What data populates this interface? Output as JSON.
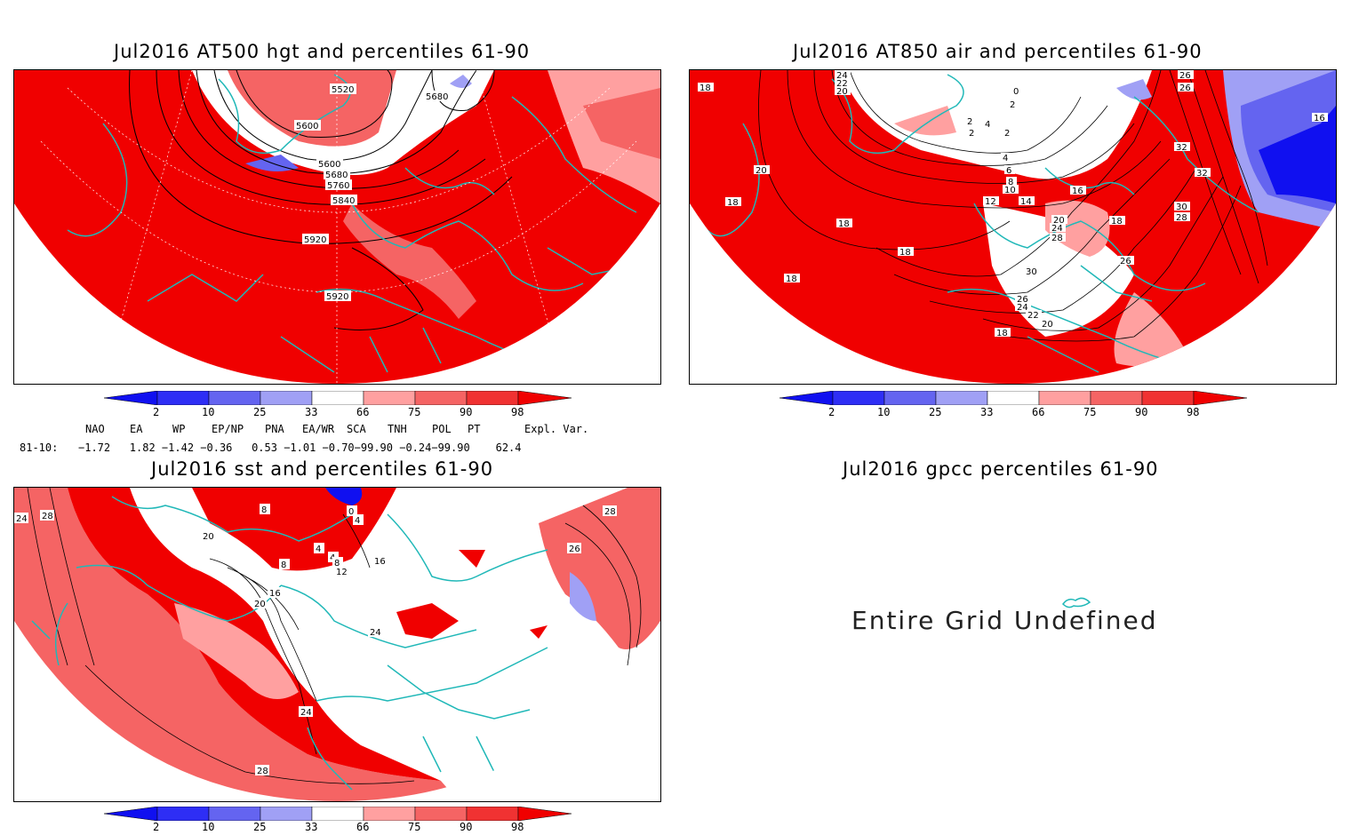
{
  "panels": {
    "hgt": {
      "title": "Jul2016 AT500 hgt and percentiles 61-90",
      "contour_labels": [
        "5520",
        "5680",
        "5600",
        "5600",
        "5680",
        "5760",
        "5840",
        "5920",
        "5920"
      ]
    },
    "air": {
      "title": "Jul2016 AT850 air and percentiles 61-90",
      "contour_labels": [
        "24",
        "22",
        "20",
        "18",
        "0",
        "2",
        "2",
        "4",
        "2",
        "2",
        "4",
        "6",
        "8",
        "10",
        "12",
        "14",
        "16",
        "20",
        "18",
        "24",
        "28",
        "18",
        "30",
        "26",
        "26",
        "24",
        "22",
        "20",
        "18",
        "18",
        "20",
        "18",
        "26",
        "26",
        "32",
        "32",
        "30",
        "28",
        "18",
        "16"
      ]
    },
    "sst": {
      "title": "Jul2016 sst and percentiles 61-90",
      "contour_labels": [
        "24",
        "28",
        "20",
        "8",
        "4",
        "4",
        "8",
        "12",
        "16",
        "20",
        "24",
        "24",
        "28",
        "28",
        "26",
        "0",
        "4",
        "8",
        "16"
      ]
    },
    "gpcc": {
      "title": "Jul2016 gpcc percentiles 61-90",
      "message": "Entire Grid Undefined"
    }
  },
  "colorbar": {
    "ticks": [
      "2",
      "10",
      "25",
      "33",
      "66",
      "75",
      "90",
      "98"
    ],
    "colors": {
      "blue_deep": "#1010f0",
      "blue_1": "#2e2ef5",
      "blue_2": "#6464f0",
      "blue_3": "#a0a0f5",
      "white": "#ffffff",
      "red_1": "#ffa0a0",
      "red_2": "#f56464",
      "red_3": "#f03232",
      "red_deep": "#f00000"
    }
  },
  "indices": {
    "names": [
      "NAO",
      "EA",
      "WP",
      "EP/NP",
      "PNA",
      "EA/WR",
      "SCA",
      "TNH",
      "POL",
      "PT",
      "Expl. Var."
    ],
    "period": "81-10:",
    "values_line": "−1.72   1.82 −1.42 −0.36   0.53 −1.01 −0.70−99.90 −0.24−99.90    62.4"
  },
  "colors": {
    "map_red": "#f00000",
    "coast": "#20b8b8",
    "mid_red": "#f56464",
    "light_red": "#ffa0a0",
    "blue": "#1010f0"
  }
}
